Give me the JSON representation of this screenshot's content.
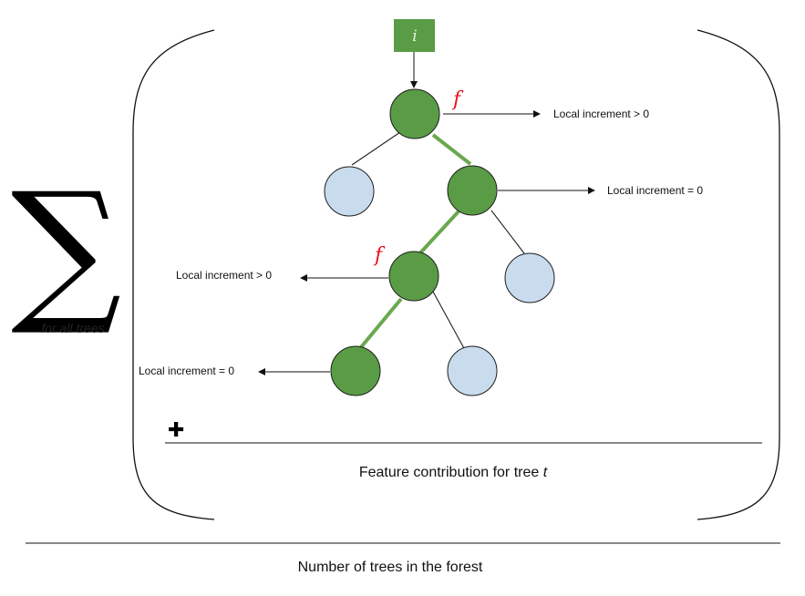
{
  "summation": {
    "symbol": "∑",
    "subtitle": "for all trees"
  },
  "input": {
    "label": "i"
  },
  "feature_marker": "f",
  "plus": "✚",
  "increments": {
    "root": "Local increment > 0",
    "right_child": "Local increment = 0",
    "mid_node": "Local increment > 0",
    "leaf": "Local increment = 0"
  },
  "captions": {
    "tree_contribution": "Feature contribution for tree ",
    "tree_variable": "t",
    "denominator": "Number of trees in the forest"
  },
  "colors": {
    "path_node": "#5a9c45",
    "leaf_node": "#c9dcee",
    "path_edge": "#6aa84f",
    "input_box": "#5a9c45",
    "marker": "#e8131b"
  }
}
